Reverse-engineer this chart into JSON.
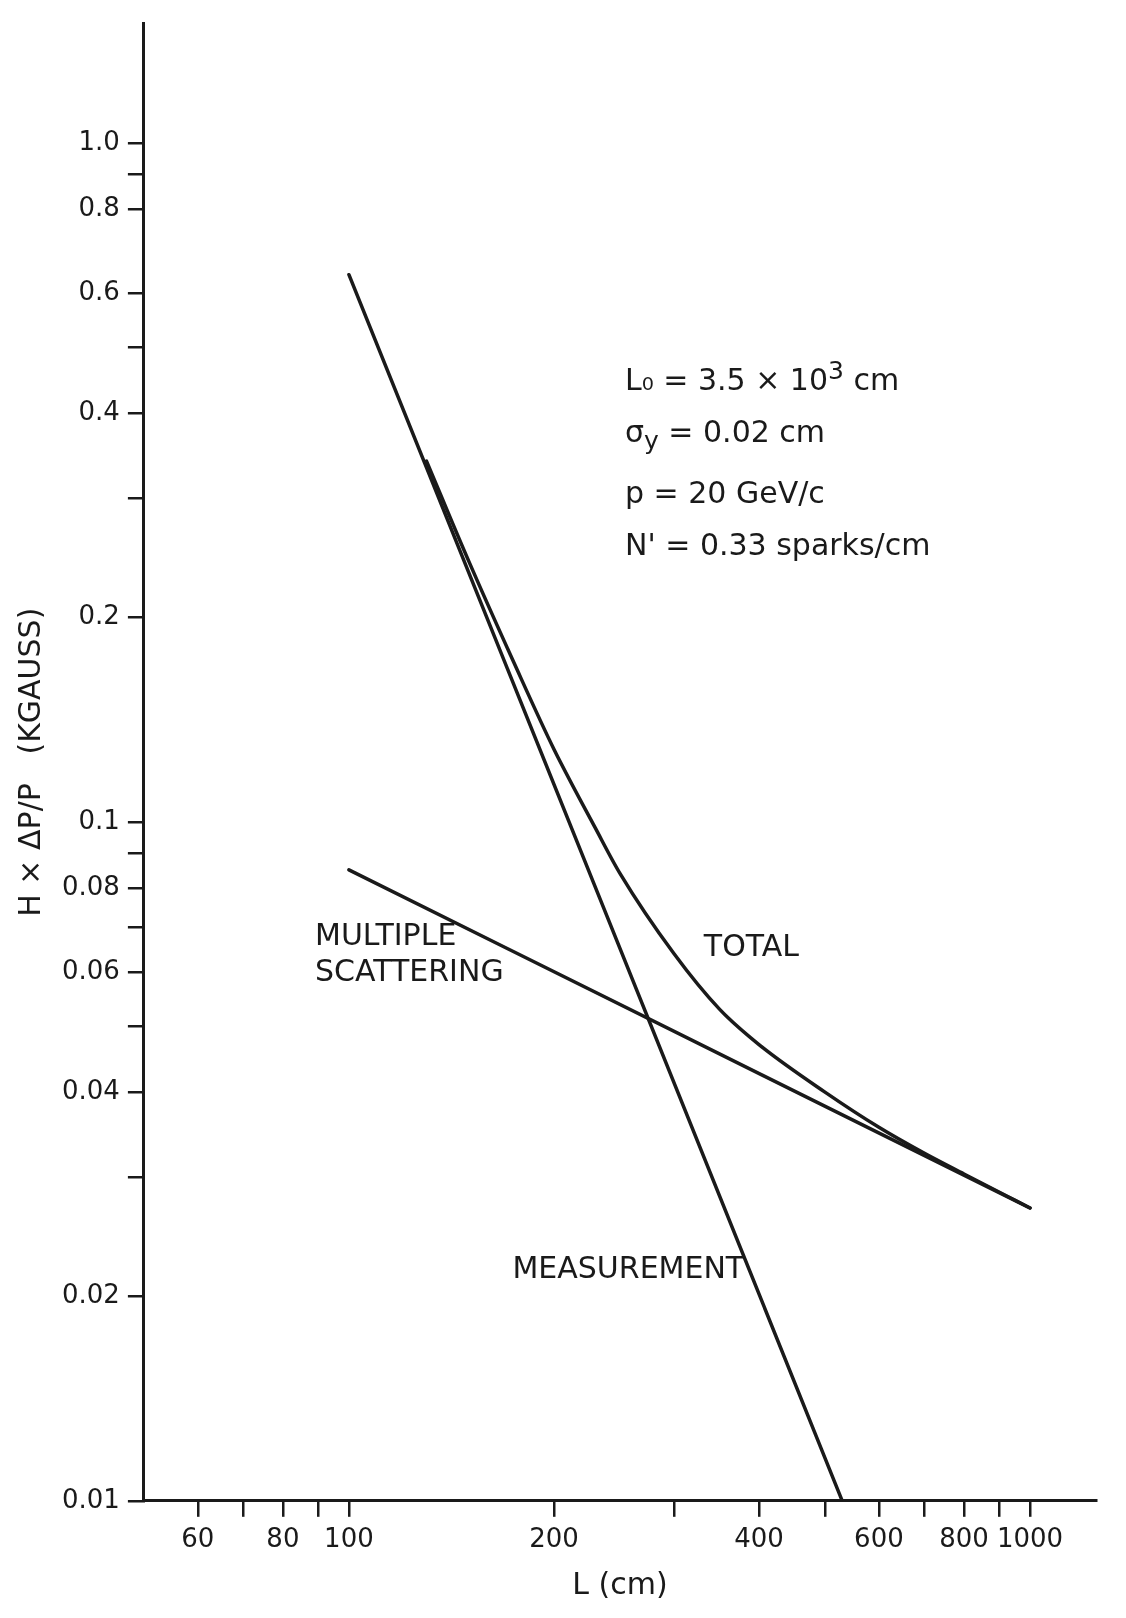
{
  "chart_data": {
    "type": "line",
    "xlabel": "L (cm)",
    "ylabel": "H × ΔP/P   (KGAUSS)",
    "log": "xy",
    "grid": false,
    "legend": false,
    "marker": "none",
    "line_style": "solid",
    "xlim": [
      50,
      1250
    ],
    "ylim": [
      0.01,
      1.5
    ],
    "xticks": [
      60,
      {
        "value": 70,
        "label": null
      },
      80,
      {
        "value": 90,
        "label": null
      },
      100,
      200,
      {
        "value": 300,
        "label": null
      },
      400,
      {
        "value": 500,
        "label": null
      },
      600,
      {
        "value": 700,
        "label": null
      },
      800,
      {
        "value": 900,
        "label": null
      },
      1000
    ],
    "yticks": [
      {
        "value": 1,
        "label": "1.0"
      },
      {
        "value": 0.9,
        "label": null
      },
      0.8,
      0.6,
      {
        "value": 0.5,
        "label": null
      },
      0.4,
      {
        "value": 0.3,
        "label": null
      },
      0.2,
      0.1,
      {
        "value": 0.09,
        "label": null
      },
      0.08,
      {
        "value": 0.07,
        "label": null
      },
      0.06,
      {
        "value": 0.05,
        "label": null
      },
      0.04,
      {
        "value": 0.03,
        "label": null
      },
      0.02,
      0.01
    ],
    "series": [
      {
        "name": "MULTIPLE SCATTERING",
        "color": "#1a1a1a",
        "x": [
          100,
          1000
        ],
        "values": [
          0.085,
          0.027
        ]
      },
      {
        "name": "TOTAL",
        "color": "#1a1a1a",
        "x": [
          130,
          150,
          175,
          200,
          230,
          250,
          300,
          350,
          400,
          500,
          600,
          700,
          800,
          1000
        ],
        "values": [
          0.34,
          0.242,
          0.171,
          0.128,
          0.098,
          0.084,
          0.064,
          0.053,
          0.047,
          0.04,
          0.0355,
          0.0325,
          0.0303,
          0.027
        ]
      },
      {
        "name": "MEASUREMENT",
        "color": "#1a1a1a",
        "x": [
          100,
          530
        ],
        "values": [
          0.64,
          0.01
        ]
      }
    ],
    "annotations": [
      "L₀ = 3.5 × 10$^{3}$ cm",
      "σ$_{y}$ = 0.02 cm",
      "p  = 20 GeV/c",
      "N' = 0.33 sparks/cm"
    ]
  }
}
